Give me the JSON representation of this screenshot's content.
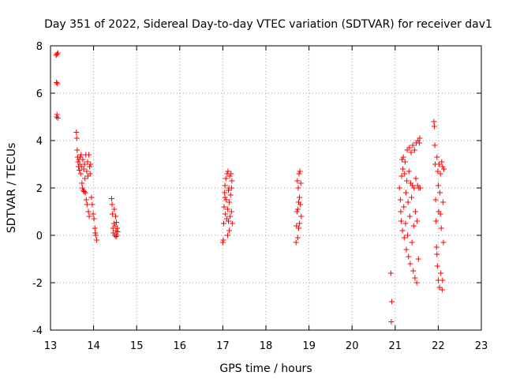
{
  "chart_data": {
    "type": "scatter",
    "title": "Day 351 of 2022, Sidereal Day-to-day VTEC variation (SDTVAR) for receiver dav1",
    "xlabel": "GPS time / hours",
    "ylabel": "SDTVAR / TECUs",
    "xlim": [
      13,
      23
    ],
    "ylim": [
      -4,
      8
    ],
    "xticks": [
      13,
      14,
      15,
      16,
      17,
      18,
      19,
      20,
      21,
      22,
      23
    ],
    "yticks": [
      -4,
      -2,
      0,
      2,
      4,
      6,
      8
    ],
    "grid": true,
    "marker": "+",
    "series": [
      {
        "name": "SDTVAR",
        "color": "#ff0000",
        "points": [
          [
            13.13,
            7.6
          ],
          [
            13.15,
            7.65
          ],
          [
            13.17,
            7.7
          ],
          [
            13.14,
            6.45
          ],
          [
            13.16,
            6.4
          ],
          [
            13.15,
            5.1
          ],
          [
            13.17,
            4.95
          ],
          [
            13.14,
            5.0
          ],
          [
            13.6,
            4.35
          ],
          [
            13.61,
            4.1
          ],
          [
            13.62,
            3.6
          ],
          [
            13.63,
            3.3
          ],
          [
            13.64,
            3.1
          ],
          [
            13.65,
            2.9
          ],
          [
            13.66,
            3.2
          ],
          [
            13.67,
            2.75
          ],
          [
            13.68,
            3.0
          ],
          [
            13.69,
            3.3
          ],
          [
            13.7,
            2.6
          ],
          [
            13.71,
            3.4
          ],
          [
            13.72,
            2.9
          ],
          [
            13.73,
            2.2
          ],
          [
            13.74,
            2.0
          ],
          [
            13.75,
            3.2
          ],
          [
            13.76,
            1.9
          ],
          [
            13.77,
            2.8
          ],
          [
            13.78,
            1.85
          ],
          [
            13.79,
            3.0
          ],
          [
            13.8,
            2.4
          ],
          [
            13.81,
            1.8
          ],
          [
            13.82,
            3.4
          ],
          [
            13.83,
            1.5
          ],
          [
            13.84,
            2.7
          ],
          [
            13.85,
            1.3
          ],
          [
            13.86,
            3.1
          ],
          [
            13.87,
            2.5
          ],
          [
            13.88,
            1.0
          ],
          [
            13.89,
            3.4
          ],
          [
            13.9,
            0.8
          ],
          [
            13.91,
            2.9
          ],
          [
            13.92,
            2.6
          ],
          [
            13.93,
            3.0
          ],
          [
            13.95,
            1.6
          ],
          [
            13.97,
            1.3
          ],
          [
            13.99,
            0.9
          ],
          [
            14.01,
            0.7
          ],
          [
            14.03,
            0.3
          ],
          [
            14.05,
            0.0
          ],
          [
            14.07,
            -0.2
          ],
          [
            14.04,
            0.1
          ],
          [
            14.42,
            1.55
          ],
          [
            14.43,
            1.3
          ],
          [
            14.44,
            0.9
          ],
          [
            14.45,
            0.3
          ],
          [
            14.46,
            0.1
          ],
          [
            14.47,
            0.5
          ],
          [
            14.48,
            1.1
          ],
          [
            14.49,
            0.0
          ],
          [
            14.5,
            0.4
          ],
          [
            14.51,
            0.8
          ],
          [
            14.52,
            0.2
          ],
          [
            14.53,
            0.55
          ],
          [
            14.54,
            0.0
          ],
          [
            14.55,
            0.3
          ],
          [
            14.56,
            0.15
          ],
          [
            14.52,
            -0.05
          ],
          [
            17.0,
            -0.3
          ],
          [
            17.01,
            -0.2
          ],
          [
            17.02,
            0.5
          ],
          [
            17.03,
            1.2
          ],
          [
            17.04,
            1.8
          ],
          [
            17.05,
            2.1
          ],
          [
            17.06,
            0.9
          ],
          [
            17.07,
            2.4
          ],
          [
            17.08,
            1.5
          ],
          [
            17.09,
            0.7
          ],
          [
            17.1,
            2.6
          ],
          [
            17.11,
            1.1
          ],
          [
            17.12,
            2.7
          ],
          [
            17.13,
            0.6
          ],
          [
            17.14,
            2.0
          ],
          [
            17.15,
            1.4
          ],
          [
            17.16,
            2.5
          ],
          [
            17.17,
            0.8
          ],
          [
            17.18,
            1.7
          ],
          [
            17.19,
            2.6
          ],
          [
            17.2,
            1.0
          ],
          [
            17.21,
            2.3
          ],
          [
            17.22,
            0.5
          ],
          [
            17.11,
            0.0
          ],
          [
            17.13,
            1.9
          ],
          [
            17.05,
            1.6
          ],
          [
            17.15,
            0.2
          ],
          [
            17.2,
            2.0
          ],
          [
            18.7,
            -0.3
          ],
          [
            18.71,
            0.4
          ],
          [
            18.72,
            1.0
          ],
          [
            18.73,
            2.3
          ],
          [
            18.74,
            1.1
          ],
          [
            18.75,
            2.0
          ],
          [
            18.76,
            0.3
          ],
          [
            18.77,
            2.6
          ],
          [
            18.78,
            1.6
          ],
          [
            18.79,
            2.7
          ],
          [
            18.8,
            1.3
          ],
          [
            18.81,
            2.2
          ],
          [
            18.82,
            0.8
          ],
          [
            18.74,
            -0.1
          ],
          [
            18.78,
            0.5
          ],
          [
            18.76,
            1.4
          ],
          [
            20.9,
            -1.6
          ],
          [
            20.92,
            -2.8
          ],
          [
            20.91,
            -3.65
          ],
          [
            21.1,
            2.0
          ],
          [
            21.12,
            1.5
          ],
          [
            21.13,
            1.0
          ],
          [
            21.14,
            0.6
          ],
          [
            21.15,
            2.5
          ],
          [
            21.16,
            3.2
          ],
          [
            21.17,
            0.2
          ],
          [
            21.18,
            2.8
          ],
          [
            21.19,
            3.3
          ],
          [
            21.2,
            1.2
          ],
          [
            21.21,
            -0.1
          ],
          [
            21.22,
            2.6
          ],
          [
            21.23,
            3.1
          ],
          [
            21.24,
            0.5
          ],
          [
            21.25,
            1.8
          ],
          [
            21.26,
            -0.6
          ],
          [
            21.27,
            2.3
          ],
          [
            21.28,
            3.6
          ],
          [
            21.29,
            0.0
          ],
          [
            21.3,
            1.4
          ],
          [
            21.31,
            -0.9
          ],
          [
            21.32,
            2.7
          ],
          [
            21.33,
            3.7
          ],
          [
            21.34,
            0.8
          ],
          [
            21.35,
            -1.2
          ],
          [
            21.36,
            2.2
          ],
          [
            21.37,
            3.5
          ],
          [
            21.38,
            1.6
          ],
          [
            21.39,
            -0.3
          ],
          [
            21.4,
            2.1
          ],
          [
            21.41,
            3.8
          ],
          [
            21.42,
            -1.5
          ],
          [
            21.43,
            0.4
          ],
          [
            21.44,
            2.0
          ],
          [
            21.45,
            3.6
          ],
          [
            21.46,
            -1.8
          ],
          [
            21.47,
            1.0
          ],
          [
            21.48,
            2.4
          ],
          [
            21.49,
            3.9
          ],
          [
            21.5,
            -2.0
          ],
          [
            21.51,
            0.6
          ],
          [
            21.52,
            2.1
          ],
          [
            21.53,
            4.0
          ],
          [
            21.54,
            -1.0
          ],
          [
            21.55,
            2.0
          ],
          [
            21.56,
            3.9
          ],
          [
            21.57,
            4.1
          ],
          [
            21.58,
            2.0
          ],
          [
            21.9,
            4.8
          ],
          [
            21.91,
            4.6
          ],
          [
            21.92,
            3.8
          ],
          [
            21.93,
            3.0
          ],
          [
            21.94,
            1.5
          ],
          [
            21.95,
            0.6
          ],
          [
            21.96,
            -0.5
          ],
          [
            21.97,
            3.3
          ],
          [
            21.98,
            -1.3
          ],
          [
            21.99,
            2.7
          ],
          [
            22.0,
            -1.9
          ],
          [
            22.01,
            1.0
          ],
          [
            22.02,
            3.0
          ],
          [
            22.03,
            -2.2
          ],
          [
            22.04,
            1.8
          ],
          [
            22.05,
            2.6
          ],
          [
            22.06,
            -1.6
          ],
          [
            22.07,
            0.3
          ],
          [
            22.08,
            3.1
          ],
          [
            22.09,
            -2.3
          ],
          [
            22.1,
            2.9
          ],
          [
            22.11,
            1.4
          ],
          [
            22.12,
            -0.3
          ],
          [
            22.13,
            2.8
          ],
          [
            22.1,
            -1.9
          ],
          [
            22.05,
            0.9
          ],
          [
            21.97,
            -0.8
          ],
          [
            22.0,
            2.1
          ]
        ]
      }
    ]
  }
}
